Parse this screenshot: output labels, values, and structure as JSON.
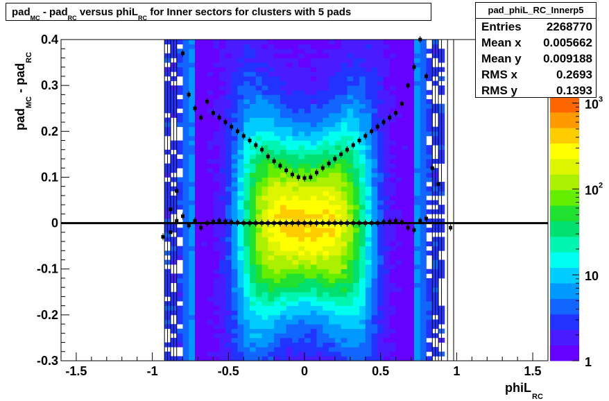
{
  "chart_data": {
    "type": "heatmap",
    "title": {
      "parts": [
        "pad",
        "MC",
        " - pad",
        "RC",
        " versus phiL",
        "RC",
        " for Inner sectors for clusters with 5 pads"
      ]
    },
    "xlabel": {
      "main": "phiL",
      "sub": "RC"
    },
    "ylabel": {
      "parts": [
        "pad",
        "MC",
        " - pad",
        "RC"
      ]
    },
    "xlim": [
      -1.6,
      1.6
    ],
    "ylim": [
      -0.3,
      0.4
    ],
    "x_ticks": [
      "-1.5",
      "-1",
      "-0.5",
      "0",
      "0.5",
      "1",
      "1.5"
    ],
    "x_tick_values": [
      -1.5,
      -1,
      -0.5,
      0,
      0.5,
      1,
      1.5
    ],
    "y_ticks": [
      "-0.3",
      "-0.2",
      "-0.1",
      "0",
      "0.1",
      "0.2",
      "0.3",
      "0.4"
    ],
    "y_tick_values": [
      -0.3,
      -0.2,
      -0.1,
      0,
      0.1,
      0.2,
      0.3,
      0.4
    ],
    "z_scale": "log",
    "z_ticks": [
      {
        "base": "1",
        "exp": "",
        "value": 1
      },
      {
        "base": "10",
        "exp": "",
        "value": 10
      },
      {
        "base": "10",
        "exp": "2",
        "value": 100
      },
      {
        "base": "10",
        "exp": "3",
        "value": 1000
      }
    ],
    "palette": [
      "#6600ff",
      "#4a1bff",
      "#2233ff",
      "#1266ff",
      "#0099ff",
      "#00ccff",
      "#00ffee",
      "#00f5b0",
      "#00e070",
      "#20e030",
      "#66ee00",
      "#aaf000",
      "#ddf500",
      "#ffff00",
      "#ffcc00",
      "#ff9900",
      "#ff6600",
      "#ff3300"
    ],
    "profile_mean": {
      "x": [
        -0.93,
        -0.88,
        -0.84,
        -0.8,
        -0.76,
        -0.72,
        -0.68,
        -0.64,
        -0.6,
        -0.56,
        -0.52,
        -0.48,
        -0.44,
        -0.4,
        -0.36,
        -0.32,
        -0.28,
        -0.24,
        -0.2,
        -0.16,
        -0.12,
        -0.08,
        -0.04,
        0,
        0.04,
        0.08,
        0.12,
        0.16,
        0.2,
        0.24,
        0.28,
        0.32,
        0.36,
        0.4,
        0.44,
        0.48,
        0.52,
        0.56,
        0.6,
        0.64,
        0.68,
        0.72,
        0.76,
        0.8,
        0.96
      ],
      "y": [
        -0.03,
        -0.02,
        0.005,
        0.015,
        -0.005,
        0.005,
        -0.01,
        0,
        0.003,
        0.005,
        0.003,
        0.002,
        0.001,
        0,
        0,
        0,
        0,
        0,
        0,
        0,
        0,
        0,
        0,
        0,
        0,
        0,
        0,
        0,
        0,
        0,
        0,
        0,
        0,
        0,
        0,
        0,
        0.002,
        0.003,
        0.005,
        0.002,
        -0.01,
        -0.015,
        0.005,
        0.01,
        -0.01
      ]
    },
    "profile_rms": {
      "x": [
        -0.88,
        -0.84,
        -0.8,
        -0.76,
        -0.72,
        -0.68,
        -0.64,
        -0.6,
        -0.56,
        -0.52,
        -0.48,
        -0.44,
        -0.4,
        -0.36,
        -0.32,
        -0.28,
        -0.24,
        -0.2,
        -0.16,
        -0.12,
        -0.08,
        -0.04,
        0,
        0.04,
        0.08,
        0.12,
        0.16,
        0.2,
        0.24,
        0.28,
        0.32,
        0.36,
        0.4,
        0.44,
        0.48,
        0.52,
        0.56,
        0.6,
        0.64,
        0.68,
        0.72,
        0.76,
        0.8,
        0.84,
        0.88
      ],
      "y": [
        0.03,
        0.07,
        0.37,
        0.28,
        0.25,
        0.23,
        0.265,
        0.24,
        0.23,
        0.22,
        0.21,
        0.2,
        0.19,
        0.18,
        0.17,
        0.16,
        0.145,
        0.135,
        0.125,
        0.115,
        0.106,
        0.1,
        0.098,
        0.1,
        0.11,
        0.12,
        0.13,
        0.14,
        0.15,
        0.16,
        0.17,
        0.18,
        0.19,
        0.2,
        0.21,
        0.22,
        0.23,
        0.24,
        0.26,
        0.3,
        0.34,
        0.4,
        0.32,
        0.12,
        0.085
      ]
    }
  },
  "stats": {
    "name": "pad_phiL_RC_Innerp5",
    "rows": [
      {
        "key": "Entries",
        "value": "2268770"
      },
      {
        "key": "Mean x",
        "value": "0.005662"
      },
      {
        "key": "Mean y",
        "value": "0.009188"
      },
      {
        "key": "RMS x",
        "value": "0.2693"
      },
      {
        "key": "RMS y",
        "value": "0.1393"
      }
    ]
  }
}
